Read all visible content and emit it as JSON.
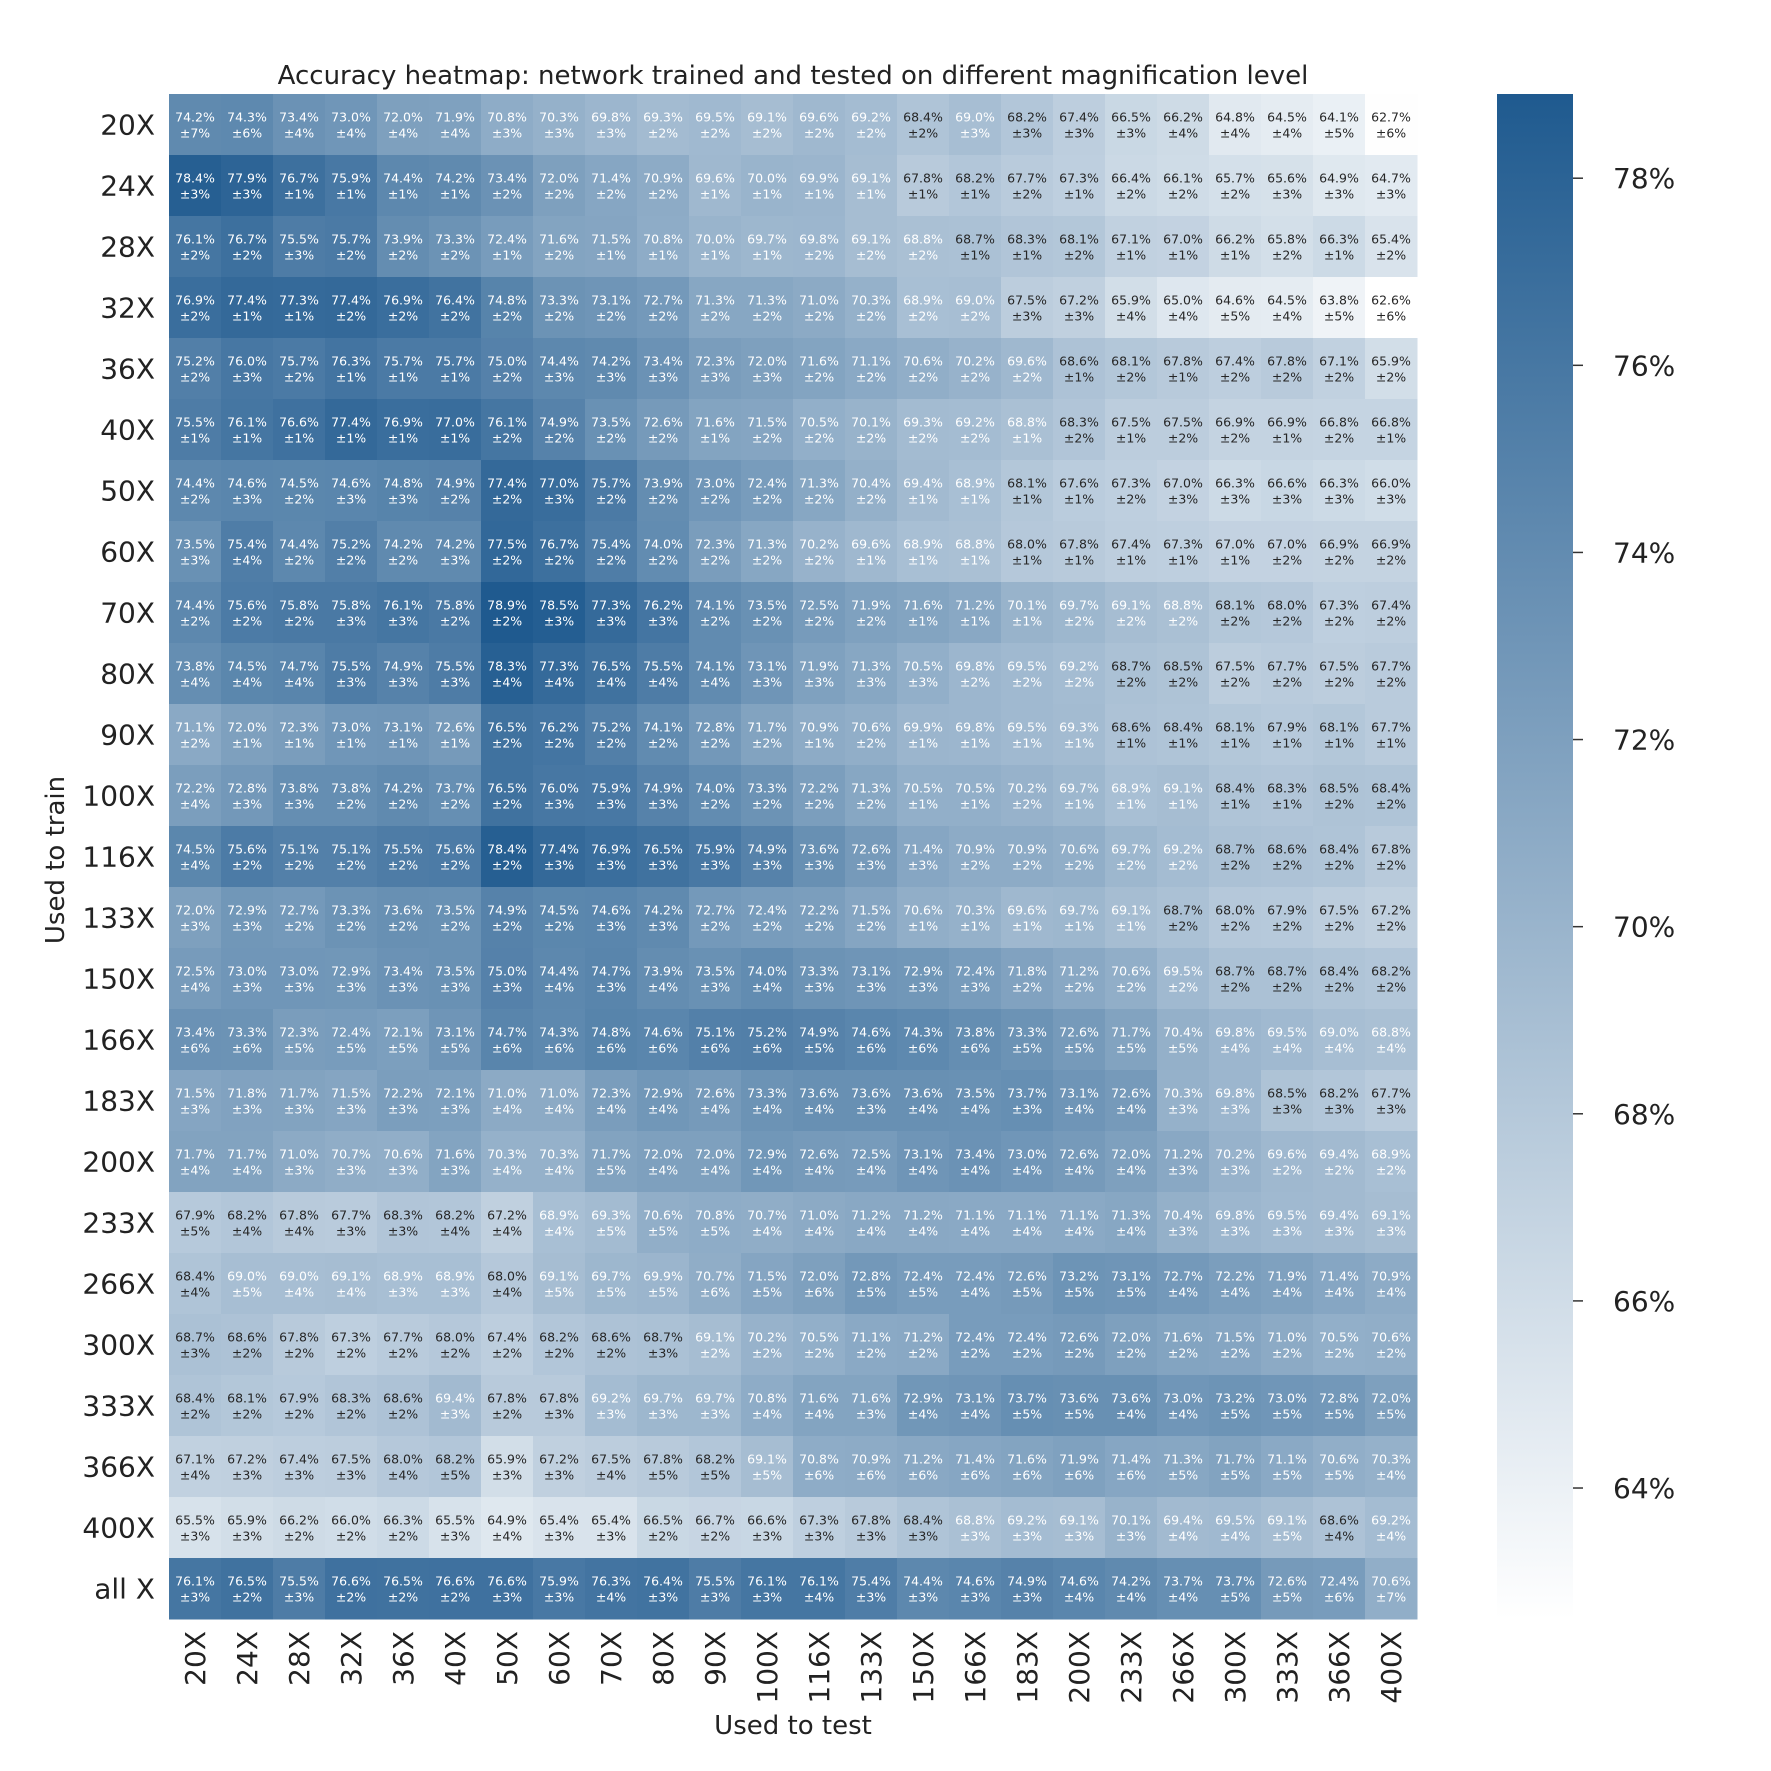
{
  "chart_data": {
    "type": "heatmap",
    "title": "Accuracy heatmap: network trained and tested on different magnification level",
    "xlabel": "Used to test",
    "ylabel": "Used to train",
    "x_categories": [
      "20X",
      "24X",
      "28X",
      "32X",
      "36X",
      "40X",
      "50X",
      "60X",
      "70X",
      "80X",
      "90X",
      "100X",
      "116X",
      "133X",
      "150X",
      "166X",
      "183X",
      "200X",
      "233X",
      "266X",
      "300X",
      "333X",
      "366X",
      "400X"
    ],
    "y_categories": [
      "20X",
      "24X",
      "28X",
      "32X",
      "36X",
      "40X",
      "50X",
      "60X",
      "70X",
      "80X",
      "90X",
      "100X",
      "116X",
      "133X",
      "150X",
      "166X",
      "183X",
      "200X",
      "233X",
      "266X",
      "300X",
      "333X",
      "366X",
      "400X",
      "all X"
    ],
    "values": [
      [
        74.2,
        74.3,
        73.4,
        73.0,
        72.0,
        71.9,
        70.8,
        70.3,
        69.8,
        69.3,
        69.5,
        69.1,
        69.6,
        69.2,
        68.4,
        69.0,
        68.2,
        67.4,
        66.5,
        66.2,
        64.8,
        64.5,
        64.1,
        62.7
      ],
      [
        78.4,
        77.9,
        76.7,
        75.9,
        74.4,
        74.2,
        73.4,
        72.0,
        71.4,
        70.9,
        69.6,
        70.0,
        69.9,
        69.1,
        67.8,
        68.2,
        67.7,
        67.3,
        66.4,
        66.1,
        65.7,
        65.6,
        64.9,
        64.7
      ],
      [
        76.1,
        76.7,
        75.5,
        75.7,
        73.9,
        73.3,
        72.4,
        71.6,
        71.5,
        70.8,
        70.0,
        69.7,
        69.8,
        69.1,
        68.8,
        68.7,
        68.3,
        68.1,
        67.1,
        67.0,
        66.2,
        65.8,
        66.3,
        65.4
      ],
      [
        76.9,
        77.4,
        77.3,
        77.4,
        76.9,
        76.4,
        74.8,
        73.3,
        73.1,
        72.7,
        71.3,
        71.3,
        71.0,
        70.3,
        68.9,
        69.0,
        67.5,
        67.2,
        65.9,
        65.0,
        64.6,
        64.5,
        63.8,
        62.6
      ],
      [
        75.2,
        76.0,
        75.7,
        76.3,
        75.7,
        75.7,
        75.0,
        74.4,
        74.2,
        73.4,
        72.3,
        72.0,
        71.6,
        71.1,
        70.6,
        70.2,
        69.6,
        68.6,
        68.1,
        67.8,
        67.4,
        67.8,
        67.1,
        65.9
      ],
      [
        75.5,
        76.1,
        76.6,
        77.4,
        76.9,
        77.0,
        76.1,
        74.9,
        73.5,
        72.6,
        71.6,
        71.5,
        70.5,
        70.1,
        69.3,
        69.2,
        68.8,
        68.3,
        67.5,
        67.5,
        66.9,
        66.9,
        66.8,
        66.8
      ],
      [
        74.4,
        74.6,
        74.5,
        74.6,
        74.8,
        74.9,
        77.4,
        77.0,
        75.7,
        73.9,
        73.0,
        72.4,
        71.3,
        70.4,
        69.4,
        68.9,
        68.1,
        67.6,
        67.3,
        67.0,
        66.3,
        66.6,
        66.3,
        66.0
      ],
      [
        73.5,
        75.4,
        74.4,
        75.2,
        74.2,
        74.2,
        77.5,
        76.7,
        75.4,
        74.0,
        72.3,
        71.3,
        70.2,
        69.6,
        68.9,
        68.8,
        68.0,
        67.8,
        67.4,
        67.3,
        67.0,
        67.0,
        66.9,
        66.9
      ],
      [
        74.4,
        75.6,
        75.8,
        75.8,
        76.1,
        75.8,
        78.9,
        78.5,
        77.3,
        76.2,
        74.1,
        73.5,
        72.5,
        71.9,
        71.6,
        71.2,
        70.1,
        69.7,
        69.1,
        68.8,
        68.1,
        68.0,
        67.3,
        67.4
      ],
      [
        73.8,
        74.5,
        74.7,
        75.5,
        74.9,
        75.5,
        78.3,
        77.3,
        76.5,
        75.5,
        74.1,
        73.1,
        71.9,
        71.3,
        70.5,
        69.8,
        69.5,
        69.2,
        68.7,
        68.5,
        67.5,
        67.7,
        67.5,
        67.7
      ],
      [
        71.1,
        72.0,
        72.3,
        73.0,
        73.1,
        72.6,
        76.5,
        76.2,
        75.2,
        74.1,
        72.8,
        71.7,
        70.9,
        70.6,
        69.9,
        69.8,
        69.5,
        69.3,
        68.6,
        68.4,
        68.1,
        67.9,
        68.1,
        67.7
      ],
      [
        72.2,
        72.8,
        73.8,
        73.8,
        74.2,
        73.7,
        76.5,
        76.0,
        75.9,
        74.9,
        74.0,
        73.3,
        72.2,
        71.3,
        70.5,
        70.5,
        70.2,
        69.7,
        68.9,
        69.1,
        68.4,
        68.3,
        68.5,
        68.4
      ],
      [
        74.5,
        75.6,
        75.1,
        75.1,
        75.5,
        75.6,
        78.4,
        77.4,
        76.9,
        76.5,
        75.9,
        74.9,
        73.6,
        72.6,
        71.4,
        70.9,
        70.9,
        70.6,
        69.7,
        69.2,
        68.7,
        68.6,
        68.4,
        67.8
      ],
      [
        72.0,
        72.9,
        72.7,
        73.3,
        73.6,
        73.5,
        74.9,
        74.5,
        74.6,
        74.2,
        72.7,
        72.4,
        72.2,
        71.5,
        70.6,
        70.3,
        69.6,
        69.7,
        69.1,
        68.7,
        68.0,
        67.9,
        67.5,
        67.2
      ],
      [
        72.5,
        73.0,
        73.0,
        72.9,
        73.4,
        73.5,
        75.0,
        74.4,
        74.7,
        73.9,
        73.5,
        74.0,
        73.3,
        73.1,
        72.9,
        72.4,
        71.8,
        71.2,
        70.6,
        69.5,
        68.7,
        68.7,
        68.4,
        68.2
      ],
      [
        73.4,
        73.3,
        72.3,
        72.4,
        72.1,
        73.1,
        74.7,
        74.3,
        74.8,
        74.6,
        75.1,
        75.2,
        74.9,
        74.6,
        74.3,
        73.8,
        73.3,
        72.6,
        71.7,
        70.4,
        69.8,
        69.5,
        69.0,
        68.8
      ],
      [
        71.5,
        71.8,
        71.7,
        71.5,
        72.2,
        72.1,
        71.0,
        71.0,
        72.3,
        72.9,
        72.6,
        73.3,
        73.6,
        73.6,
        73.6,
        73.5,
        73.7,
        73.1,
        72.6,
        70.3,
        69.8,
        68.5,
        68.2,
        67.7
      ],
      [
        71.7,
        71.7,
        71.0,
        70.7,
        70.6,
        71.6,
        70.3,
        70.3,
        71.7,
        72.0,
        72.0,
        72.9,
        72.6,
        72.5,
        73.1,
        73.4,
        73.0,
        72.6,
        72.0,
        71.2,
        70.2,
        69.6,
        69.4,
        68.9
      ],
      [
        67.9,
        68.2,
        67.8,
        67.7,
        68.3,
        68.2,
        67.2,
        68.9,
        69.3,
        70.6,
        70.8,
        70.7,
        71.0,
        71.2,
        71.2,
        71.1,
        71.1,
        71.1,
        71.3,
        70.4,
        69.8,
        69.5,
        69.4,
        69.1
      ],
      [
        68.4,
        69.0,
        69.0,
        69.1,
        68.9,
        68.9,
        68.0,
        69.1,
        69.7,
        69.9,
        70.7,
        71.5,
        72.0,
        72.8,
        72.4,
        72.4,
        72.6,
        73.2,
        73.1,
        72.7,
        72.2,
        71.9,
        71.4,
        70.9
      ],
      [
        68.7,
        68.6,
        67.8,
        67.3,
        67.7,
        68.0,
        67.4,
        68.2,
        68.6,
        68.7,
        69.1,
        70.2,
        70.5,
        71.1,
        71.2,
        72.4,
        72.4,
        72.6,
        72.0,
        71.6,
        71.5,
        71.0,
        70.5,
        70.6
      ],
      [
        68.4,
        68.1,
        67.9,
        68.3,
        68.6,
        69.4,
        67.8,
        67.8,
        69.2,
        69.7,
        69.7,
        70.8,
        71.6,
        71.6,
        72.9,
        73.1,
        73.7,
        73.6,
        73.6,
        73.0,
        73.2,
        73.0,
        72.8,
        72.0
      ],
      [
        67.1,
        67.2,
        67.4,
        67.5,
        68.0,
        68.2,
        65.9,
        67.2,
        67.5,
        67.8,
        68.2,
        69.1,
        70.8,
        70.9,
        71.2,
        71.4,
        71.6,
        71.9,
        71.4,
        71.3,
        71.7,
        71.1,
        70.6,
        70.3
      ],
      [
        65.5,
        65.9,
        66.2,
        66.0,
        66.3,
        65.5,
        64.9,
        65.4,
        65.4,
        66.5,
        66.7,
        66.6,
        67.3,
        67.8,
        68.4,
        68.8,
        69.2,
        69.1,
        70.1,
        69.4,
        69.5,
        69.1,
        68.6,
        69.2
      ],
      [
        76.1,
        76.5,
        75.5,
        76.6,
        76.5,
        76.6,
        76.6,
        75.9,
        76.3,
        76.4,
        75.5,
        76.1,
        76.1,
        75.4,
        74.4,
        74.6,
        74.9,
        74.6,
        74.2,
        73.7,
        73.7,
        72.6,
        72.4,
        70.6
      ]
    ],
    "errors": [
      [
        7,
        6,
        4,
        4,
        4,
        4,
        3,
        3,
        3,
        2,
        2,
        2,
        2,
        2,
        2,
        3,
        3,
        3,
        3,
        4,
        4,
        4,
        5,
        6
      ],
      [
        3,
        3,
        1,
        1,
        1,
        1,
        2,
        2,
        2,
        2,
        1,
        1,
        1,
        1,
        1,
        1,
        2,
        1,
        2,
        2,
        2,
        3,
        3,
        3
      ],
      [
        2,
        2,
        3,
        2,
        2,
        2,
        1,
        2,
        1,
        1,
        1,
        1,
        2,
        2,
        2,
        1,
        1,
        2,
        1,
        1,
        1,
        2,
        1,
        2
      ],
      [
        2,
        1,
        1,
        2,
        2,
        2,
        2,
        2,
        2,
        2,
        2,
        2,
        2,
        2,
        2,
        2,
        3,
        3,
        4,
        4,
        5,
        4,
        5,
        6
      ],
      [
        2,
        3,
        2,
        1,
        1,
        1,
        2,
        3,
        3,
        3,
        3,
        3,
        2,
        2,
        2,
        2,
        2,
        1,
        2,
        1,
        2,
        2,
        2,
        2
      ],
      [
        1,
        1,
        1,
        1,
        1,
        1,
        2,
        2,
        2,
        2,
        1,
        2,
        2,
        2,
        2,
        2,
        1,
        2,
        1,
        2,
        2,
        1,
        2,
        1
      ],
      [
        2,
        3,
        2,
        3,
        3,
        2,
        2,
        3,
        2,
        2,
        2,
        2,
        2,
        2,
        1,
        1,
        1,
        1,
        2,
        3,
        3,
        3,
        3,
        3
      ],
      [
        3,
        4,
        2,
        2,
        2,
        3,
        2,
        2,
        2,
        2,
        2,
        2,
        2,
        1,
        1,
        1,
        1,
        1,
        1,
        1,
        1,
        2,
        2,
        2
      ],
      [
        2,
        2,
        2,
        3,
        3,
        2,
        2,
        3,
        3,
        3,
        2,
        2,
        2,
        2,
        1,
        1,
        1,
        2,
        2,
        2,
        2,
        2,
        2,
        2
      ],
      [
        4,
        4,
        4,
        3,
        3,
        3,
        4,
        4,
        4,
        4,
        4,
        3,
        3,
        3,
        3,
        2,
        2,
        2,
        2,
        2,
        2,
        2,
        2,
        2
      ],
      [
        2,
        1,
        1,
        1,
        1,
        1,
        2,
        2,
        2,
        2,
        2,
        2,
        1,
        2,
        1,
        1,
        1,
        1,
        1,
        1,
        1,
        1,
        1,
        1
      ],
      [
        4,
        3,
        3,
        2,
        2,
        2,
        2,
        3,
        3,
        3,
        2,
        2,
        2,
        2,
        1,
        1,
        2,
        1,
        1,
        1,
        1,
        1,
        2,
        2
      ],
      [
        4,
        2,
        2,
        2,
        2,
        2,
        2,
        3,
        3,
        3,
        3,
        3,
        3,
        3,
        3,
        2,
        2,
        2,
        2,
        2,
        2,
        2,
        2,
        2
      ],
      [
        3,
        3,
        2,
        2,
        2,
        2,
        2,
        2,
        3,
        3,
        2,
        2,
        2,
        2,
        1,
        1,
        1,
        1,
        1,
        2,
        2,
        2,
        2,
        2
      ],
      [
        4,
        3,
        3,
        3,
        3,
        3,
        3,
        4,
        3,
        4,
        3,
        4,
        3,
        3,
        3,
        3,
        2,
        2,
        2,
        2,
        2,
        2,
        2,
        2
      ],
      [
        6,
        6,
        5,
        5,
        5,
        5,
        6,
        6,
        6,
        6,
        6,
        6,
        5,
        6,
        6,
        6,
        5,
        5,
        5,
        5,
        4,
        4,
        4,
        4
      ],
      [
        3,
        3,
        3,
        3,
        3,
        3,
        4,
        4,
        4,
        4,
        4,
        4,
        4,
        3,
        4,
        4,
        3,
        4,
        4,
        3,
        3,
        3,
        3,
        3
      ],
      [
        4,
        4,
        3,
        3,
        3,
        3,
        4,
        4,
        5,
        4,
        4,
        4,
        4,
        4,
        4,
        4,
        4,
        4,
        4,
        3,
        3,
        2,
        2,
        2
      ],
      [
        5,
        4,
        4,
        3,
        3,
        4,
        4,
        4,
        5,
        5,
        5,
        4,
        4,
        4,
        4,
        4,
        4,
        4,
        4,
        3,
        3,
        3,
        3,
        3
      ],
      [
        4,
        5,
        4,
        4,
        3,
        3,
        4,
        5,
        5,
        5,
        6,
        5,
        6,
        5,
        5,
        4,
        5,
        5,
        5,
        4,
        4,
        4,
        4,
        4
      ],
      [
        3,
        2,
        2,
        2,
        2,
        2,
        2,
        2,
        2,
        3,
        2,
        2,
        2,
        2,
        2,
        2,
        2,
        2,
        2,
        2,
        2,
        2,
        2,
        2
      ],
      [
        2,
        2,
        2,
        2,
        2,
        3,
        2,
        3,
        3,
        3,
        3,
        4,
        4,
        3,
        4,
        4,
        5,
        5,
        4,
        4,
        5,
        5,
        5,
        5
      ],
      [
        4,
        3,
        3,
        3,
        4,
        5,
        3,
        3,
        4,
        5,
        5,
        5,
        6,
        6,
        6,
        6,
        6,
        6,
        6,
        5,
        5,
        5,
        5,
        4
      ],
      [
        3,
        3,
        2,
        2,
        2,
        3,
        4,
        3,
        3,
        2,
        2,
        3,
        3,
        3,
        3,
        3,
        3,
        3,
        3,
        4,
        4,
        5,
        4,
        4
      ],
      [
        3,
        2,
        3,
        2,
        2,
        2,
        3,
        3,
        4,
        3,
        3,
        3,
        4,
        3,
        3,
        3,
        3,
        4,
        4,
        4,
        5,
        5,
        6,
        7
      ]
    ],
    "colorbar": {
      "vmin": 62.6,
      "vmax": 78.9,
      "ticks": [
        64,
        66,
        68,
        70,
        72,
        74,
        76,
        78
      ],
      "tick_suffix": "%",
      "color_low": "#ffffff",
      "color_high": "#1f5a8f"
    }
  }
}
